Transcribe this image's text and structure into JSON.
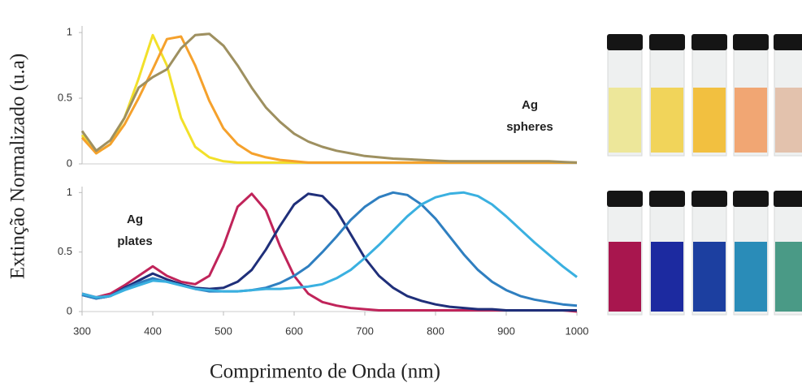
{
  "chart_data": [
    {
      "type": "line",
      "y_label": "Extinção Normalizado (u.a)",
      "annotation": [
        "Ag",
        "spheres"
      ],
      "x": [
        300,
        320,
        340,
        360,
        380,
        400,
        420,
        440,
        460,
        480,
        500,
        520,
        540,
        560,
        580,
        600,
        620,
        640,
        660,
        680,
        700,
        720,
        740,
        760,
        780,
        800,
        820,
        840,
        860,
        880,
        900,
        920,
        940,
        960,
        980,
        1000
      ],
      "xlim": [
        300,
        1000
      ],
      "ylim": [
        0,
        1.05
      ],
      "yticks": [
        0,
        0.5,
        1
      ],
      "series": [
        {
          "color": "#f2e02a",
          "values": [
            0.22,
            0.08,
            0.15,
            0.35,
            0.65,
            0.98,
            0.75,
            0.35,
            0.13,
            0.05,
            0.02,
            0.01,
            0.01,
            0.01,
            0.01,
            0.01,
            0.01,
            0.01,
            0.01,
            0.01,
            0.01,
            0.01,
            0.01,
            0.01,
            0.01,
            0.01,
            0.01,
            0.01,
            0.01,
            0.01,
            0.01,
            0.01,
            0.01,
            0.01,
            0.01,
            0.01
          ]
        },
        {
          "color": "#f5a12c",
          "values": [
            0.2,
            0.08,
            0.15,
            0.3,
            0.5,
            0.72,
            0.95,
            0.97,
            0.75,
            0.48,
            0.27,
            0.15,
            0.08,
            0.05,
            0.03,
            0.02,
            0.01,
            0.01,
            0.01,
            0.01,
            0.01,
            0.01,
            0.01,
            0.01,
            0.01,
            0.01,
            0.01,
            0.01,
            0.01,
            0.01,
            0.01,
            0.01,
            0.01,
            0.01,
            0.01,
            0.01
          ]
        },
        {
          "color": "#9e9060",
          "values": [
            0.25,
            0.1,
            0.18,
            0.35,
            0.58,
            0.66,
            0.72,
            0.88,
            0.98,
            0.99,
            0.9,
            0.75,
            0.58,
            0.43,
            0.32,
            0.23,
            0.17,
            0.13,
            0.1,
            0.08,
            0.06,
            0.05,
            0.04,
            0.035,
            0.03,
            0.025,
            0.02,
            0.02,
            0.02,
            0.02,
            0.02,
            0.02,
            0.02,
            0.02,
            0.015,
            0.01
          ]
        }
      ]
    },
    {
      "type": "line",
      "x_label": "Comprimento de Onda (nm)",
      "annotation": [
        "Ag",
        "plates"
      ],
      "x": [
        300,
        320,
        340,
        360,
        380,
        400,
        420,
        440,
        460,
        480,
        500,
        520,
        540,
        560,
        580,
        600,
        620,
        640,
        660,
        680,
        700,
        720,
        740,
        760,
        780,
        800,
        820,
        840,
        860,
        880,
        900,
        920,
        940,
        960,
        980,
        1000
      ],
      "xlim": [
        300,
        1000
      ],
      "xticks": [
        300,
        400,
        500,
        600,
        700,
        800,
        900,
        1000
      ],
      "ylim": [
        0,
        1.05
      ],
      "yticks": [
        0,
        0.5,
        1
      ],
      "series": [
        {
          "color": "#c0245a",
          "values": [
            0.15,
            0.12,
            0.15,
            0.22,
            0.3,
            0.38,
            0.3,
            0.25,
            0.23,
            0.3,
            0.55,
            0.88,
            0.99,
            0.85,
            0.55,
            0.3,
            0.15,
            0.08,
            0.05,
            0.03,
            0.02,
            0.01,
            0.01,
            0.01,
            0.01,
            0.01,
            0.01,
            0.01,
            0.01,
            0.01,
            0.01,
            0.01,
            0.01,
            0.01,
            0.01,
            0
          ]
        },
        {
          "color": "#1f2f7a",
          "values": [
            0.14,
            0.11,
            0.13,
            0.2,
            0.26,
            0.32,
            0.27,
            0.23,
            0.2,
            0.19,
            0.2,
            0.25,
            0.35,
            0.52,
            0.72,
            0.9,
            0.99,
            0.97,
            0.85,
            0.65,
            0.45,
            0.3,
            0.2,
            0.13,
            0.09,
            0.06,
            0.04,
            0.03,
            0.02,
            0.02,
            0.01,
            0.01,
            0.01,
            0.01,
            0.01,
            0.01
          ]
        },
        {
          "color": "#2f7fc0",
          "values": [
            0.14,
            0.11,
            0.13,
            0.19,
            0.24,
            0.28,
            0.25,
            0.22,
            0.19,
            0.17,
            0.17,
            0.17,
            0.18,
            0.2,
            0.24,
            0.3,
            0.38,
            0.5,
            0.63,
            0.77,
            0.88,
            0.96,
            1.0,
            0.98,
            0.9,
            0.78,
            0.63,
            0.48,
            0.35,
            0.25,
            0.18,
            0.13,
            0.1,
            0.08,
            0.06,
            0.05
          ]
        },
        {
          "color": "#3ab0e0",
          "values": [
            0.15,
            0.12,
            0.13,
            0.18,
            0.22,
            0.26,
            0.25,
            0.22,
            0.19,
            0.18,
            0.17,
            0.17,
            0.18,
            0.19,
            0.19,
            0.2,
            0.21,
            0.23,
            0.28,
            0.35,
            0.45,
            0.56,
            0.68,
            0.8,
            0.9,
            0.96,
            0.99,
            1.0,
            0.97,
            0.9,
            0.8,
            0.69,
            0.58,
            0.48,
            0.38,
            0.29
          ]
        }
      ]
    }
  ]
}
